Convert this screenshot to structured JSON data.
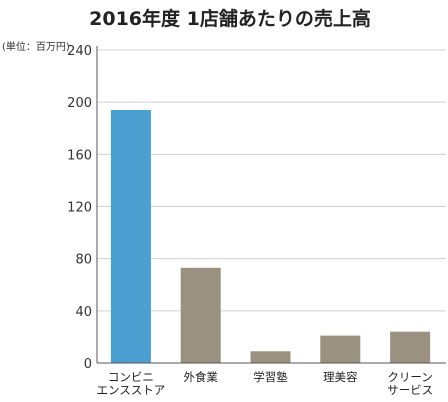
{
  "chart_data": {
    "type": "bar",
    "title": "2016年度 1店舗あたりの売上高",
    "unit_label": "(単位：百万円)",
    "categories": [
      [
        "コンビニ",
        "エンスストア"
      ],
      [
        "外食業"
      ],
      [
        "学習塾"
      ],
      [
        "理美容"
      ],
      [
        "クリーン",
        "サービス"
      ]
    ],
    "values": [
      194,
      73,
      9,
      21,
      24
    ],
    "ylim": [
      0,
      240
    ],
    "yticks": [
      "0",
      "40",
      "80",
      "120",
      "160",
      "200",
      "240"
    ],
    "grid": true,
    "colors": {
      "highlight": "#4a9ed0",
      "bar": "#9b9180",
      "grid": "#d0d0d0",
      "axis": "#555555"
    },
    "highlight_index": 0
  }
}
